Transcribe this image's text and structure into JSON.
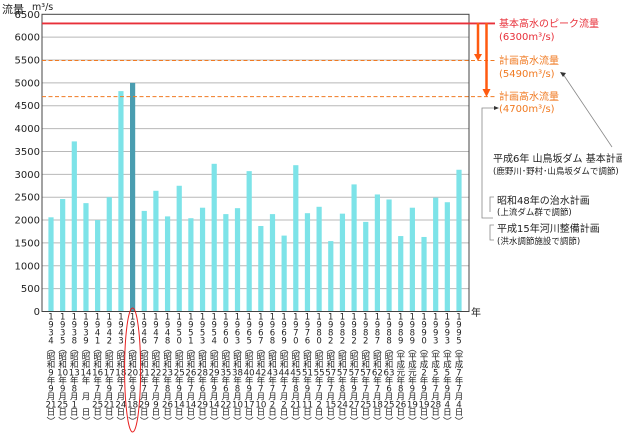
{
  "chart_data": {
    "type": "bar",
    "ylabel": "流量",
    "yunit": "m³/s",
    "xunit": "年",
    "ylim": [
      0,
      6500
    ],
    "yticks": [
      0,
      500,
      1000,
      1500,
      2000,
      2500,
      3000,
      3500,
      4000,
      4500,
      5000,
      5500,
      6000,
      6500
    ],
    "grid": true,
    "bar_color": "#7de3e8",
    "highlight_color": "#4a9db0",
    "highlight_index": 7,
    "categories": [
      {
        "year": "1934",
        "era": "昭和",
        "era_year": "9",
        "month": "9",
        "day": "21"
      },
      {
        "year": "1935",
        "era": "昭和",
        "era_year": "10",
        "month": "9",
        "day": "25"
      },
      {
        "year": "1938",
        "era": "昭和",
        "era_year": "13",
        "month": "8",
        "day": "1"
      },
      {
        "year": "1939",
        "era": "昭和",
        "era_year": "14",
        "month": "",
        "day": ""
      },
      {
        "year": "1941",
        "era": "昭和",
        "era_year": "16",
        "month": "7",
        "day": "25"
      },
      {
        "year": "1942",
        "era": "昭和",
        "era_year": "17",
        "month": "9",
        "day": "21"
      },
      {
        "year": "1943",
        "era": "昭和",
        "era_year": "18",
        "month": "7",
        "day": "24"
      },
      {
        "year": "1945",
        "era": "昭和",
        "era_year": "20",
        "month": "9",
        "day": "18"
      },
      {
        "year": "1946",
        "era": "昭和",
        "era_year": "21",
        "month": "7",
        "day": "29"
      },
      {
        "year": "1947",
        "era": "昭和",
        "era_year": "22",
        "month": "7",
        "day": "9"
      },
      {
        "year": "1948",
        "era": "昭和",
        "era_year": "23",
        "month": "8",
        "day": "26"
      },
      {
        "year": "1950",
        "era": "昭和",
        "era_year": "25",
        "month": "9",
        "day": "14"
      },
      {
        "year": "1951",
        "era": "昭和",
        "era_year": "26",
        "month": "7",
        "day": "14"
      },
      {
        "year": "1953",
        "era": "昭和",
        "era_year": "28",
        "month": "6",
        "day": "29"
      },
      {
        "year": "1954",
        "era": "昭和",
        "era_year": "29",
        "month": "9",
        "day": "14"
      },
      {
        "year": "1960",
        "era": "昭和",
        "era_year": "35",
        "month": "6",
        "day": "22"
      },
      {
        "year": "1963",
        "era": "昭和",
        "era_year": "38",
        "month": "8",
        "day": "10"
      },
      {
        "year": "1965",
        "era": "昭和",
        "era_year": "40",
        "month": "9",
        "day": "17"
      },
      {
        "year": "1967",
        "era": "昭和",
        "era_year": "42",
        "month": "7",
        "day": "10"
      },
      {
        "year": "1968",
        "era": "昭和",
        "era_year": "43",
        "month": "7",
        "day": "2"
      },
      {
        "year": "1969",
        "era": "昭和",
        "era_year": "44",
        "month": "7",
        "day": "2"
      },
      {
        "year": "1970",
        "era": "昭和",
        "era_year": "45",
        "month": "8",
        "day": "21"
      },
      {
        "year": "1976",
        "era": "昭和",
        "era_year": "51",
        "month": "9",
        "day": "11"
      },
      {
        "year": "1980",
        "era": "昭和",
        "era_year": "55",
        "month": "7",
        "day": "2"
      },
      {
        "year": "1982",
        "era": "昭和",
        "era_year": "57",
        "month": "7",
        "day": "15"
      },
      {
        "year": "1982",
        "era": "昭和",
        "era_year": "57",
        "month": "8",
        "day": "24"
      },
      {
        "year": "1982",
        "era": "昭和",
        "era_year": "57",
        "month": "9",
        "day": "27"
      },
      {
        "year": "1982",
        "era": "昭和",
        "era_year": "57",
        "month": "7",
        "day": "25"
      },
      {
        "year": "1987",
        "era": "昭和",
        "era_year": "62",
        "month": "7",
        "day": "18"
      },
      {
        "year": "1988",
        "era": "昭和",
        "era_year": "63",
        "month": "6",
        "day": "25"
      },
      {
        "year": "1989",
        "era": "平成",
        "era_year": "元",
        "month": "8",
        "day": "26"
      },
      {
        "year": "1989",
        "era": "平成",
        "era_year": "元",
        "month": "9",
        "day": "19"
      },
      {
        "year": "1990",
        "era": "平成",
        "era_year": "2",
        "month": "9",
        "day": "19"
      },
      {
        "year": "1993",
        "era": "平成",
        "era_year": "5",
        "month": "7",
        "day": "28"
      },
      {
        "year": "1993",
        "era": "平成",
        "era_year": "5",
        "month": "9",
        "day": "4"
      },
      {
        "year": "1995",
        "era": "平成",
        "era_year": "7",
        "month": "7",
        "day": "4"
      }
    ],
    "values": [
      2060,
      2460,
      3720,
      2370,
      2000,
      2500,
      4820,
      5000,
      2200,
      2640,
      2080,
      2750,
      2040,
      2270,
      3230,
      2130,
      2260,
      3070,
      1870,
      2130,
      1660,
      3200,
      2150,
      2290,
      1540,
      2140,
      2780,
      1960,
      2560,
      2450,
      1650,
      2270,
      1630,
      2490,
      2390,
      3100
    ],
    "date_labels": {
      "year_suffix": "年",
      "month_suffix": "月",
      "day_suffix": "日"
    },
    "reference_lines": [
      {
        "value": 6300,
        "label": "基本高水のピーク流量",
        "sublabel": "(6300m³/s)",
        "color": "#e8303a",
        "style": "solid"
      },
      {
        "value": 5490,
        "label": "計画高水流量",
        "sublabel": "(5490m³/s)",
        "color": "#f07a22",
        "style": "dashed"
      },
      {
        "value": 4700,
        "label": "計画高水流量",
        "sublabel": "(4700m³/s)",
        "color": "#f07a22",
        "style": "dashed"
      }
    ],
    "arrow_color": "#ff5a10",
    "notes": [
      {
        "title": "平成6年  山鳥坂ダム 基本計画",
        "sub": "(鹿野川･野村･山鳥坂ダムで調節)"
      },
      {
        "title": "昭和48年の治水計画",
        "sub": "(上流ダム群で調節)"
      },
      {
        "title": "平成15年河川整備計画",
        "sub": "(洪水調節施設で調節)"
      }
    ]
  }
}
